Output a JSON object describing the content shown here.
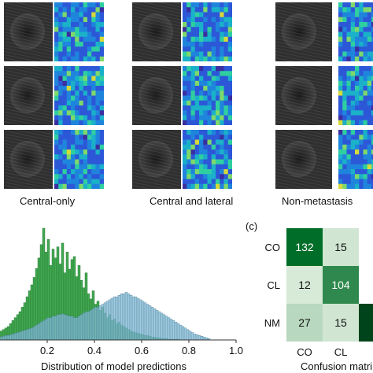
{
  "panel_a": {
    "groups": [
      {
        "caption": "Central-only"
      },
      {
        "caption": "Central and lateral"
      },
      {
        "caption": "Non-metastasis"
      }
    ],
    "heatmap_colors": [
      "#3a2ea0",
      "#2c58d8",
      "#1f85dc",
      "#1ab1c9",
      "#2fcfa0",
      "#7ed96a",
      "#d6d93a"
    ]
  },
  "chart_data": [
    {
      "type": "bar",
      "title": "",
      "xlabel": "Distribution of model predictions",
      "ylabel": "",
      "xticks": [
        "0.2",
        "0.4",
        "0.6",
        "0.8",
        "1.0"
      ],
      "xlim": [
        0,
        1.0
      ],
      "series": [
        {
          "color": "#2f9e3f",
          "x_start": 0.0,
          "bin_width": 0.01,
          "values": [
            12,
            14,
            16,
            18,
            22,
            26,
            30,
            34,
            38,
            44,
            50,
            58,
            66,
            74,
            84,
            96,
            110,
            128,
            150,
            118,
            135,
            100,
            122,
            110,
            125,
            102,
            130,
            90,
            118,
            95,
            108,
            112,
            85,
            100,
            80,
            70,
            90,
            62,
            55,
            66,
            48,
            52,
            40,
            44,
            36,
            30,
            34,
            26,
            28,
            22,
            24,
            20,
            18,
            16,
            14,
            12,
            11,
            10,
            9,
            8,
            7,
            6,
            6,
            5,
            4,
            4,
            3,
            3,
            2,
            2,
            2,
            1,
            1,
            1,
            1,
            1,
            0,
            0,
            0,
            0
          ]
        },
        {
          "color": "#7fb8d6",
          "x_start": 0.0,
          "bin_width": 0.01,
          "values": [
            4,
            5,
            6,
            6,
            7,
            8,
            9,
            10,
            11,
            12,
            13,
            14,
            15,
            16,
            18,
            20,
            22,
            24,
            26,
            28,
            30,
            30,
            32,
            32,
            34,
            34,
            35,
            34,
            33,
            32,
            32,
            30,
            30,
            32,
            34,
            36,
            38,
            38,
            40,
            42,
            44,
            44,
            46,
            48,
            50,
            52,
            54,
            56,
            58,
            58,
            60,
            62,
            62,
            64,
            62,
            60,
            58,
            58,
            56,
            54,
            52,
            50,
            48,
            46,
            44,
            42,
            40,
            38,
            36,
            34,
            32,
            30,
            28,
            26,
            24,
            22,
            20,
            18,
            16,
            14,
            12,
            10,
            8,
            7,
            6,
            5,
            4,
            3,
            2
          ]
        }
      ]
    },
    {
      "type": "heatmap",
      "panel_label": "(c)",
      "title": "Confusion matri",
      "row_labels": [
        "CO",
        "CL",
        "NM"
      ],
      "col_labels": [
        "CO",
        "CL"
      ],
      "values": [
        [
          132,
          15
        ],
        [
          12,
          104
        ],
        [
          27,
          15
        ]
      ]
    }
  ]
}
